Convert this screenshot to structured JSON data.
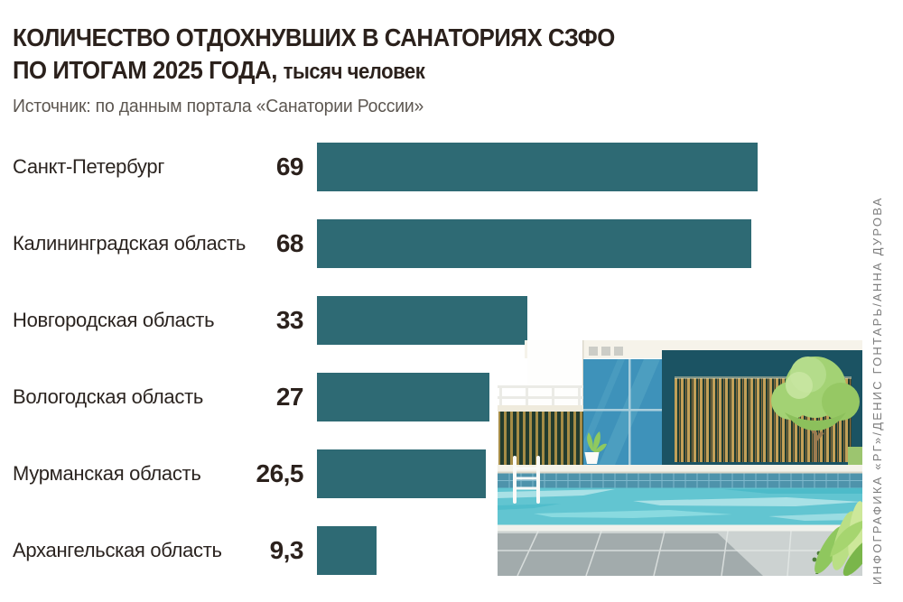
{
  "header": {
    "title_line1": "КОЛИЧЕСТВО ОТДОХНУВШИХ В САНАТОРИЯХ СЗФО",
    "title_line2": "ПО ИТОГАМ 2025 ГОДА,",
    "title_units": "тысяч человек",
    "source": "Источник: по данным портала «Санатории России»"
  },
  "chart_data": {
    "type": "bar",
    "orientation": "horizontal",
    "title": "КОЛИЧЕСТВО ОТДОХНУВШИХ В САНАТОРИЯХ СЗФО ПО ИТОГАМ 2025 ГОДА",
    "units": "тысяч человек",
    "source": "по данным портала «Санатории России»",
    "categories": [
      "Санкт-Петербург",
      "Калининградская область",
      "Новгородская область",
      "Вологодская область",
      "Мурманская область",
      "Архангельская область"
    ],
    "values": [
      69,
      68,
      33,
      27,
      26.5,
      9.3
    ],
    "value_labels": [
      "69",
      "68",
      "33",
      "27",
      "26,5",
      "9,3"
    ],
    "x_max": 69,
    "grid": false,
    "legend": false,
    "bar_color": "#2e6a74"
  },
  "credits": {
    "text": "ИНФОГРАФИКА «РГ»/ДЕНИС ГОНТАРЬ/АННА ДУРОВА"
  },
  "colors": {
    "bar": "#2e6a74",
    "title_text": "#2b211c",
    "label_text": "#2b2420",
    "source_text": "#5d5751",
    "credits_text": "#7c7c7c"
  }
}
